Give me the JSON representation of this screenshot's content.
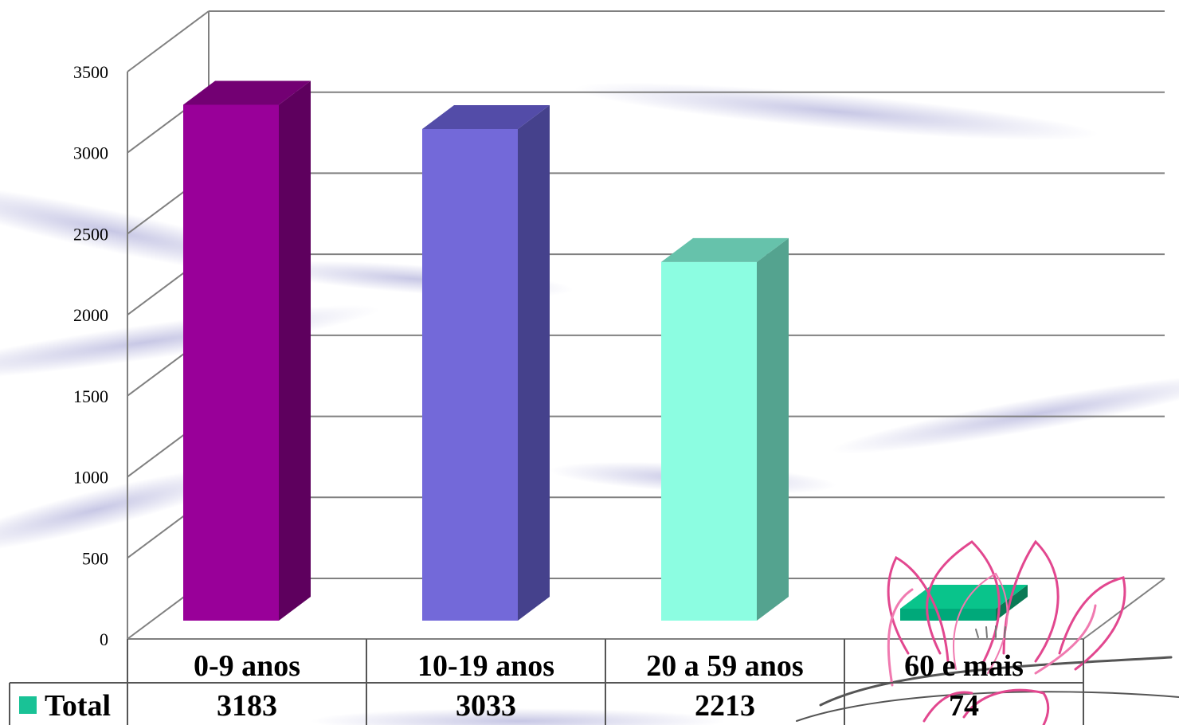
{
  "chart_data": {
    "type": "bar",
    "title": "",
    "xlabel": "",
    "ylabel": "",
    "categories": [
      "0-9 anos",
      "10-19 anos",
      "20 a 59 anos",
      "60 e mais"
    ],
    "series": [
      {
        "name": "Total",
        "values": [
          3183,
          3033,
          2213,
          74
        ]
      }
    ],
    "ylim": [
      0,
      3500
    ],
    "yticks": [
      "0",
      "500",
      "1000",
      "1500",
      "2000",
      "2500",
      "3000",
      "3500"
    ],
    "grid": true,
    "legend": "data-table-left",
    "bar_colors": [
      "#990099",
      "#7369D9",
      "#8CFDE1",
      "#00A97A"
    ],
    "bar_side_colors": [
      "#5E005E",
      "#45418C",
      "#54A38F",
      "#0A7A55"
    ],
    "bar_top_colors": [
      "#730073",
      "#534CA8",
      "#66C2AB",
      "#09C48B"
    ],
    "legend_swatch_color": "#19C296",
    "grid_color": "#808080"
  }
}
